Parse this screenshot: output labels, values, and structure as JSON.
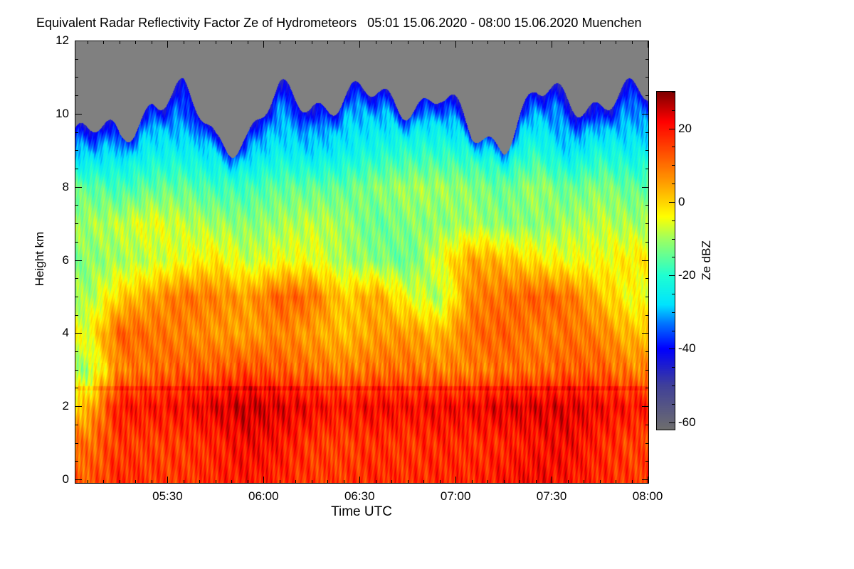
{
  "chart_data": {
    "type": "heatmap",
    "title": "Equivalent Radar Reflectivity Factor Ze of Hydrometeors   05:01 15.06.2020 - 08:00 15.06.2020 Muenchen",
    "xlabel": "Time UTC",
    "ylabel": "Height km",
    "colorbar_label": "Ze dBZ",
    "x_tick_labels": [
      "05:30",
      "06:00",
      "06:30",
      "07:00",
      "07:30",
      "08:00"
    ],
    "x_tick_minutes": [
      330,
      360,
      390,
      420,
      450,
      480
    ],
    "xlim_minutes": [
      301,
      480
    ],
    "y_tick_labels": [
      "0",
      "2",
      "4",
      "6",
      "8",
      "10",
      "12"
    ],
    "ylim": [
      0,
      12
    ],
    "colorbar_ticks": [
      -60,
      -40,
      -20,
      0,
      20
    ],
    "colorbar_range": [
      -62,
      30
    ],
    "no_signal_color": "#808080",
    "colormap": [
      [
        -62,
        "#6e6e6e"
      ],
      [
        -50,
        "#40409a"
      ],
      [
        -40,
        "#0000ff"
      ],
      [
        -33,
        "#0078ff"
      ],
      [
        -28,
        "#00e4ff"
      ],
      [
        -20,
        "#20ffd2"
      ],
      [
        -10,
        "#a0ff60"
      ],
      [
        -4,
        "#ffff00"
      ],
      [
        5,
        "#ffa000"
      ],
      [
        14,
        "#ff4a00"
      ],
      [
        22,
        "#ff0000"
      ],
      [
        30,
        "#800000"
      ]
    ],
    "grid_heights_km": [
      0,
      1,
      2,
      3,
      4,
      5,
      6,
      7,
      8,
      9,
      10,
      11,
      12
    ],
    "grid_times_minutes": [
      305,
      315,
      325,
      335,
      345,
      355,
      365,
      375,
      385,
      395,
      405,
      415,
      425,
      435,
      445,
      455,
      465,
      475
    ],
    "values_dBZ": [
      [
        12,
        10,
        2,
        -10,
        -5,
        -10,
        -12,
        -10,
        -15,
        -30,
        null,
        null,
        null
      ],
      [
        18,
        16,
        20,
        8,
        12,
        0,
        -10,
        -8,
        -18,
        -28,
        null,
        null,
        null
      ],
      [
        16,
        15,
        20,
        10,
        10,
        5,
        -8,
        -5,
        -15,
        -25,
        -32,
        null,
        null
      ],
      [
        16,
        16,
        21,
        12,
        8,
        10,
        -5,
        -8,
        -15,
        -25,
        -35,
        null,
        null
      ],
      [
        18,
        18,
        24,
        12,
        6,
        8,
        -2,
        -10,
        -18,
        -28,
        null,
        null,
        null
      ],
      [
        20,
        22,
        26,
        14,
        5,
        5,
        -8,
        -12,
        -18,
        -30,
        null,
        null,
        null
      ],
      [
        18,
        20,
        24,
        12,
        8,
        12,
        -5,
        -10,
        -15,
        -25,
        -32,
        null,
        null
      ],
      [
        16,
        16,
        22,
        10,
        5,
        10,
        -5,
        -8,
        -15,
        -28,
        -35,
        null,
        null
      ],
      [
        16,
        15,
        20,
        8,
        2,
        0,
        -10,
        -10,
        -15,
        -25,
        -30,
        null,
        null
      ],
      [
        18,
        17,
        22,
        10,
        5,
        5,
        -12,
        -15,
        -12,
        -22,
        -30,
        null,
        null
      ],
      [
        17,
        16,
        21,
        10,
        6,
        -5,
        -15,
        -12,
        -10,
        -20,
        -30,
        null,
        null
      ],
      [
        18,
        18,
        22,
        8,
        2,
        -10,
        -5,
        -12,
        -10,
        -20,
        -30,
        null,
        null
      ],
      [
        18,
        17,
        22,
        8,
        10,
        8,
        5,
        -10,
        -12,
        -22,
        null,
        null,
        null
      ],
      [
        20,
        18,
        24,
        10,
        12,
        10,
        2,
        -12,
        -15,
        -25,
        null,
        null,
        null
      ],
      [
        22,
        20,
        24,
        10,
        8,
        12,
        -2,
        -12,
        -10,
        -20,
        -30,
        null,
        null
      ],
      [
        20,
        22,
        24,
        12,
        10,
        10,
        -5,
        -10,
        -15,
        -28,
        -35,
        null,
        null
      ],
      [
        18,
        18,
        22,
        12,
        8,
        2,
        -5,
        -8,
        -12,
        -22,
        -35,
        null,
        null
      ],
      [
        16,
        15,
        20,
        8,
        2,
        -5,
        -2,
        -10,
        -15,
        -25,
        -32,
        null,
        null
      ]
    ]
  }
}
